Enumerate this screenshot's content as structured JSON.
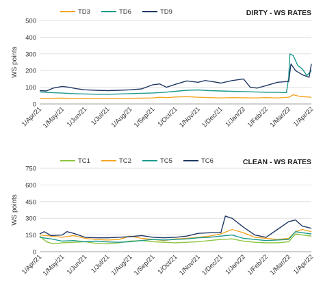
{
  "chart_data": [
    {
      "type": "line",
      "title": "DIRTY - WS RATES",
      "ylabel": "WS points",
      "xlabel": "",
      "ylim": [
        0,
        500
      ],
      "yticks": [
        "0",
        "100",
        "200",
        "300",
        "400",
        "500"
      ],
      "xticks": [
        "1/Apr/21",
        "1/May/21",
        "1/Jun/21",
        "1/Jul/21",
        "1/Aug/21",
        "1/Sep/21",
        "1/Oct/21",
        "1/Nov/21",
        "1/Dec/21",
        "1/Jan/22",
        "1/Feb/22",
        "1/Mar/22",
        "1/Apr/22"
      ],
      "grid": "horizontal",
      "legend": "top-left",
      "series": [
        {
          "name": "TD3",
          "color": "#F5A623",
          "x": [
            0,
            0.5,
            1,
            1.5,
            2,
            2.5,
            3,
            3.5,
            4,
            4.5,
            5,
            5.3,
            5.6,
            6,
            6.5,
            7,
            7.5,
            8,
            8.5,
            9,
            9.5,
            10,
            10.5,
            11,
            11.2,
            11.5,
            12
          ],
          "values": [
            33,
            34,
            35,
            33,
            34,
            33,
            32,
            33,
            34,
            35,
            36,
            40,
            38,
            42,
            44,
            40,
            38,
            36,
            38,
            37,
            36,
            38,
            36,
            40,
            55,
            45,
            40
          ]
        },
        {
          "name": "TD6",
          "color": "#1B9A8E",
          "x": [
            0,
            0.5,
            1,
            1.5,
            2,
            2.5,
            3,
            3.5,
            4,
            4.5,
            5,
            5.5,
            6,
            6.5,
            7,
            7.5,
            8,
            8.5,
            9,
            9.5,
            10,
            10.5,
            10.9,
            11,
            11.05,
            11.2,
            11.4,
            11.6,
            11.8,
            12
          ],
          "values": [
            72,
            68,
            65,
            62,
            60,
            58,
            58,
            60,
            62,
            64,
            66,
            70,
            76,
            82,
            84,
            80,
            78,
            76,
            74,
            72,
            70,
            70,
            68,
            160,
            300,
            290,
            230,
            210,
            170,
            200
          ]
        },
        {
          "name": "TD9",
          "color": "#1F3864",
          "x": [
            0,
            0.3,
            0.6,
            1,
            1.3,
            1.6,
            2,
            2.5,
            3,
            3.5,
            4,
            4.5,
            5,
            5.3,
            5.6,
            6,
            6.5,
            7,
            7.3,
            7.6,
            8,
            8.5,
            9,
            9.3,
            9.6,
            10,
            10.5,
            11,
            11.1,
            11.3,
            11.6,
            11.9,
            12
          ],
          "values": [
            80,
            78,
            95,
            105,
            100,
            92,
            85,
            82,
            80,
            82,
            85,
            90,
            115,
            120,
            100,
            118,
            138,
            130,
            140,
            135,
            125,
            140,
            150,
            100,
            95,
            110,
            130,
            135,
            240,
            200,
            175,
            160,
            240
          ]
        }
      ]
    },
    {
      "type": "line",
      "title": "CLEAN - WS RATES",
      "ylabel": "WS points",
      "xlabel": "",
      "ylim": [
        0,
        750
      ],
      "yticks": [
        "0",
        "150",
        "300",
        "450",
        "600",
        "750"
      ],
      "xticks": [
        "1/Apr/21",
        "1/May/21",
        "1/Jun/21",
        "1/Jul/21",
        "1/Aug/21",
        "1/Sep/21",
        "1/Oct/21",
        "1/Nov/21",
        "1/Dec/21",
        "1/Jan/22",
        "1/Feb/22",
        "1/Mar/22",
        "1/Apr/22"
      ],
      "grid": "horizontal",
      "legend": "top-left",
      "series": [
        {
          "name": "TC1",
          "color": "#8CC63F",
          "x": [
            0,
            0.3,
            0.6,
            1,
            1.5,
            2,
            2.5,
            3,
            3.5,
            4,
            4.5,
            5,
            5.5,
            6,
            6.5,
            7,
            7.5,
            8,
            8.5,
            9,
            9.5,
            10,
            10.5,
            11,
            11.3,
            11.6,
            12
          ],
          "values": [
            140,
            90,
            70,
            80,
            85,
            90,
            75,
            70,
            80,
            95,
            100,
            90,
            85,
            80,
            85,
            90,
            100,
            110,
            115,
            95,
            85,
            80,
            80,
            90,
            160,
            150,
            140
          ]
        },
        {
          "name": "TC2",
          "color": "#F5A623",
          "x": [
            0,
            0.5,
            1,
            1.5,
            2,
            2.5,
            3,
            3.5,
            4,
            4.5,
            5,
            5.5,
            6,
            6.5,
            7,
            7.5,
            8,
            8.5,
            9,
            9.5,
            10,
            10.5,
            11,
            11.3,
            11.6,
            12
          ],
          "values": [
            150,
            140,
            130,
            145,
            120,
            110,
            105,
            110,
            140,
            120,
            110,
            100,
            115,
            120,
            130,
            140,
            160,
            200,
            170,
            130,
            120,
            110,
            120,
            180,
            200,
            180
          ]
        },
        {
          "name": "TC5",
          "color": "#1B9A8E",
          "x": [
            0,
            0.5,
            1,
            1.5,
            2,
            2.5,
            3,
            3.5,
            4,
            4.5,
            5,
            5.5,
            6,
            6.5,
            7,
            7.5,
            8,
            8.5,
            9,
            9.5,
            10,
            10.5,
            11,
            11.3,
            11.6,
            12
          ],
          "values": [
            130,
            115,
            95,
            100,
            90,
            95,
            88,
            85,
            90,
            100,
            110,
            105,
            110,
            115,
            125,
            130,
            140,
            150,
            120,
            110,
            100,
            105,
            110,
            180,
            170,
            160
          ]
        },
        {
          "name": "TC6",
          "color": "#1F3864",
          "x": [
            0,
            0.2,
            0.5,
            1,
            1.2,
            1.5,
            2,
            2.5,
            3,
            3.5,
            4,
            4.5,
            5,
            5.5,
            6,
            6.5,
            7,
            7.5,
            8,
            8.2,
            8.5,
            9,
            9.5,
            10,
            10.5,
            11,
            11.3,
            11.6,
            12
          ],
          "values": [
            160,
            180,
            145,
            150,
            180,
            165,
            130,
            125,
            125,
            130,
            135,
            145,
            130,
            125,
            130,
            140,
            165,
            170,
            170,
            320,
            300,
            220,
            150,
            130,
            200,
            270,
            285,
            230,
            210
          ]
        }
      ]
    }
  ]
}
